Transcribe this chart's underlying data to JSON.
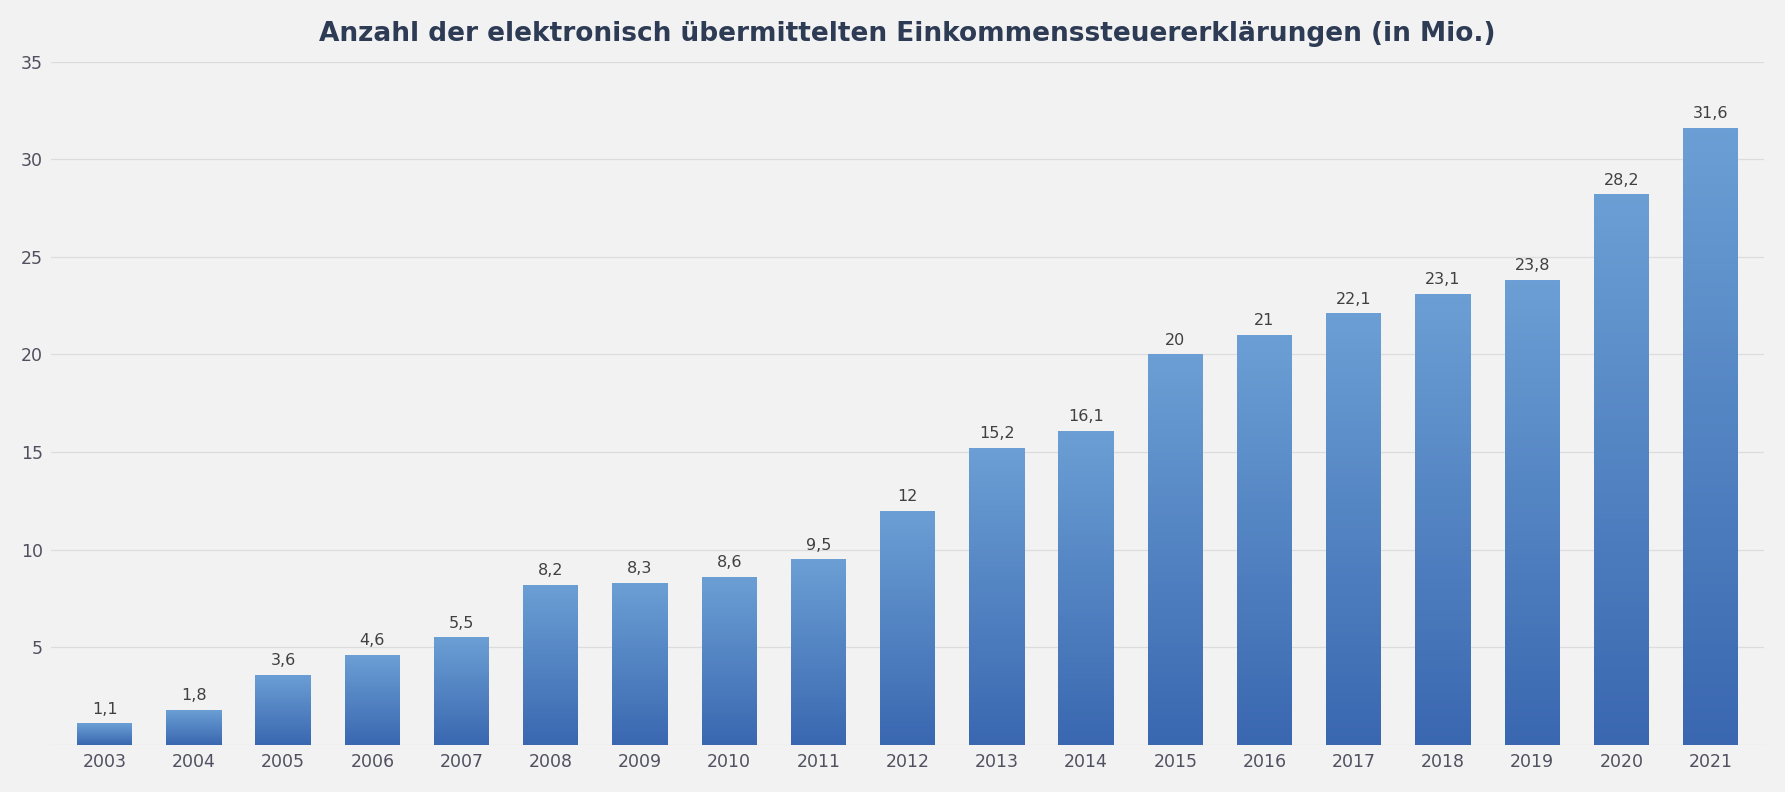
{
  "title": "Anzahl der elektronisch übermittelten Einkommenssteuererklärungen (in Mio.)",
  "years": [
    2003,
    2004,
    2005,
    2006,
    2007,
    2008,
    2009,
    2010,
    2011,
    2012,
    2013,
    2014,
    2015,
    2016,
    2017,
    2018,
    2019,
    2020,
    2021
  ],
  "values": [
    1.1,
    1.8,
    3.6,
    4.6,
    5.5,
    8.2,
    8.3,
    8.6,
    9.5,
    12.0,
    15.2,
    16.1,
    20.0,
    21.0,
    22.1,
    23.1,
    23.8,
    28.2,
    31.6
  ],
  "labels": [
    "1,1",
    "1,8",
    "3,6",
    "4,6",
    "5,5",
    "8,2",
    "8,3",
    "8,6",
    "9,5",
    "12",
    "15,2",
    "16,1",
    "20",
    "21",
    "22,1",
    "23,1",
    "23,8",
    "28,2",
    "31,6"
  ],
  "bar_color_bottom": "#3A67B0",
  "bar_color_top": "#6B9FD4",
  "background_color": "#F2F2F2",
  "plot_bg_color": "#F2F2F2",
  "title_color": "#2E3B55",
  "label_color": "#404040",
  "tick_color": "#505060",
  "grid_color": "#DCDCDC",
  "ylim": [
    0,
    35
  ],
  "yticks": [
    0,
    5,
    10,
    15,
    20,
    25,
    30,
    35
  ],
  "title_fontsize": 19,
  "label_fontsize": 11.5,
  "tick_fontsize": 12.5,
  "bar_width": 0.62
}
